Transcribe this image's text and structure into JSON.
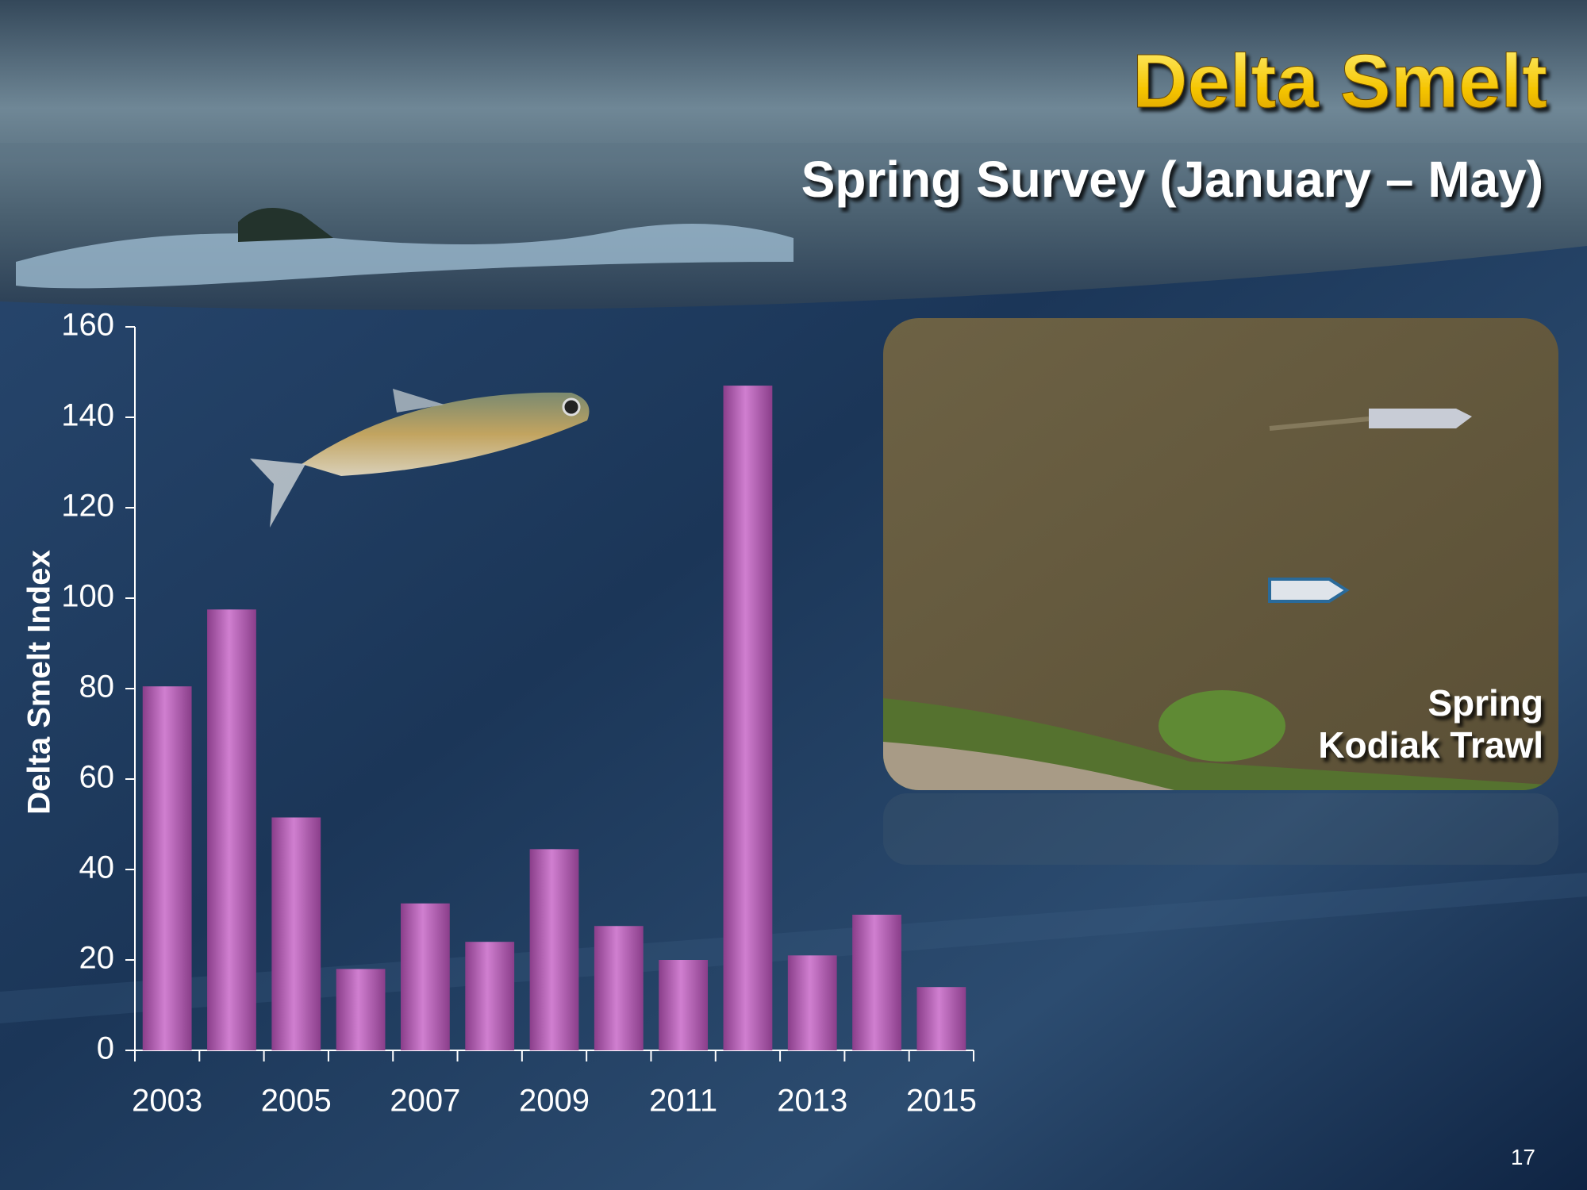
{
  "chart_data": {
    "type": "bar",
    "title": "Delta Smelt",
    "subtitle": "Spring Survey (January – May)",
    "y_label": "Delta Smelt Index",
    "categories": [
      "2003",
      null,
      "2005",
      null,
      "2007",
      null,
      "2009",
      null,
      "2011",
      null,
      "2013",
      null,
      "2015"
    ],
    "values": [
      80.5,
      97.5,
      51.5,
      18,
      32.5,
      24,
      44.5,
      27.5,
      20,
      147,
      21,
      30,
      14
    ],
    "color": "#c070c0",
    "ylim": [
      0,
      160
    ],
    "yticks": [
      0,
      20,
      40,
      60,
      80,
      100,
      120,
      140,
      160
    ],
    "grid": false
  },
  "photo_caption": [
    "Spring",
    "Kodiak Trawl"
  ],
  "page_number": "17"
}
